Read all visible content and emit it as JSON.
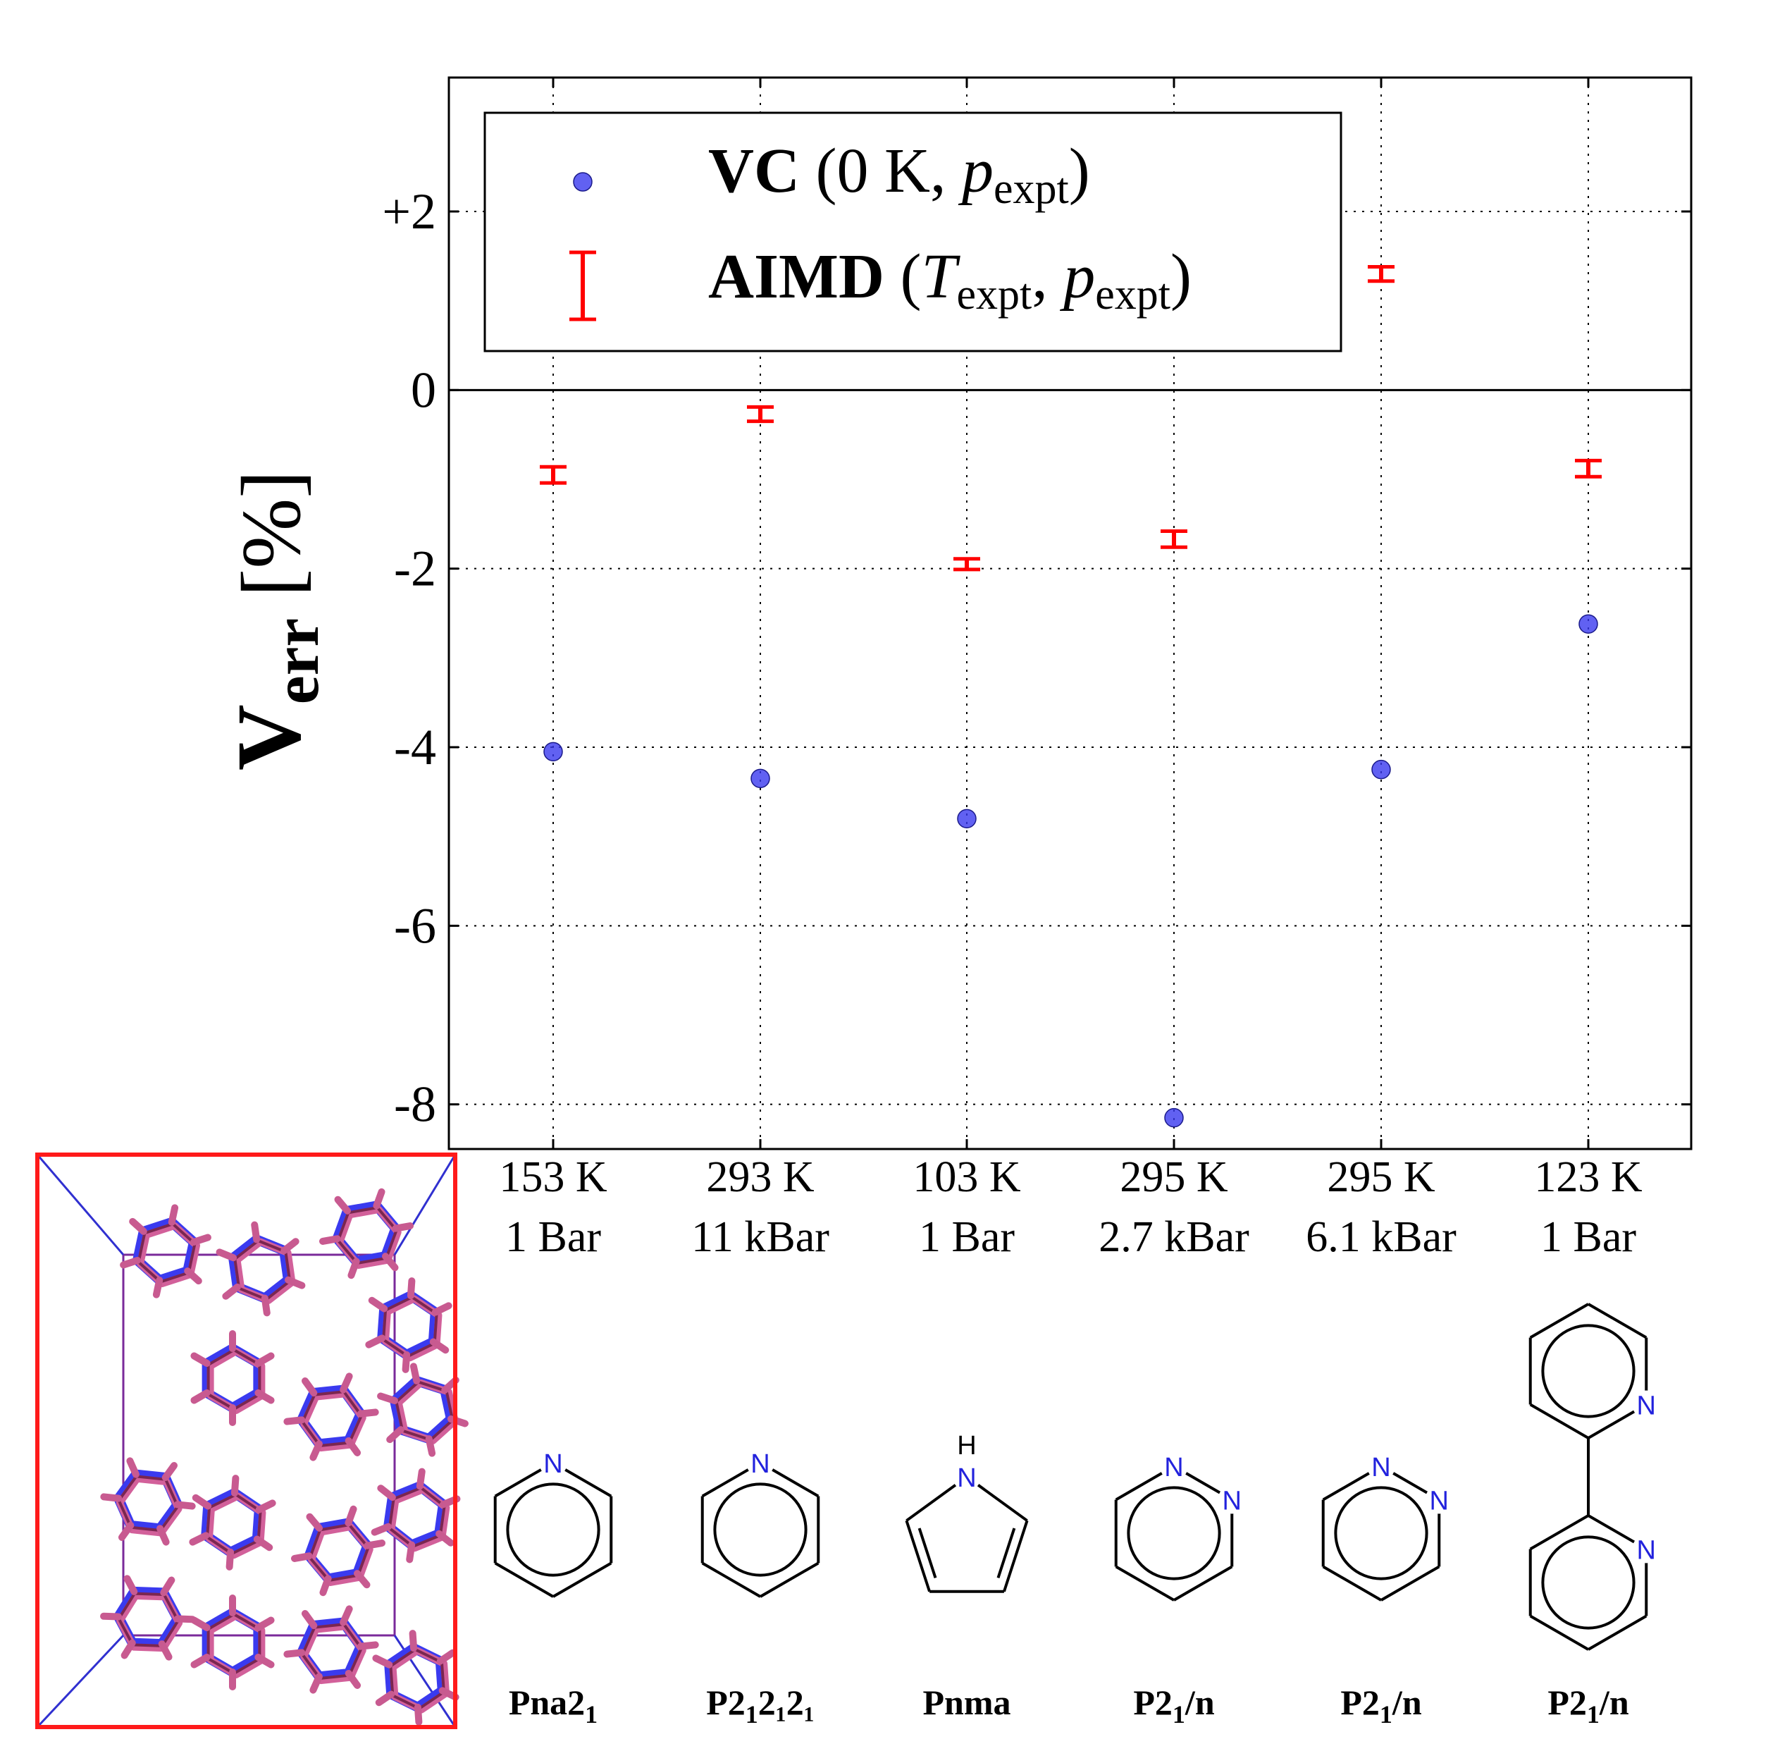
{
  "chart_data": {
    "type": "scatter",
    "title": "",
    "xlabel": "",
    "ylabel": {
      "main": "V",
      "sub": "err",
      "unit": "[%]"
    },
    "ylim": [
      -8.5,
      3.5
    ],
    "yticks": [
      {
        "value": 2,
        "label": "+2"
      },
      {
        "value": 0,
        "label": "0"
      },
      {
        "value": -2,
        "label": "-2"
      },
      {
        "value": -4,
        "label": "-4"
      },
      {
        "value": -6,
        "label": "-6"
      },
      {
        "value": -8,
        "label": "-8"
      }
    ],
    "grid": true,
    "categories": [
      {
        "temp": "153 K",
        "pressure": "1 Bar",
        "space_group": "Pna2",
        "sg_sub": "1",
        "sg_rest": "",
        "molecule": "pyridine"
      },
      {
        "temp": "293 K",
        "pressure": "11 kBar",
        "space_group": "P2",
        "sg_sub": "1",
        "sg_rest": "2₁2₁",
        "molecule": "pyridine"
      },
      {
        "temp": "103 K",
        "pressure": "1 Bar",
        "space_group": "Pnma",
        "sg_sub": "",
        "sg_rest": "",
        "molecule": "pyrrole"
      },
      {
        "temp": "295 K",
        "pressure": "2.7 kBar",
        "space_group": "P2",
        "sg_sub": "1",
        "sg_rest": "/n",
        "molecule": "pyridazine"
      },
      {
        "temp": "295 K",
        "pressure": "6.1 kBar",
        "space_group": "P2",
        "sg_sub": "1",
        "sg_rest": "/n",
        "molecule": "pyridazine"
      },
      {
        "temp": "123 K",
        "pressure": "1 Bar",
        "space_group": "P2",
        "sg_sub": "1",
        "sg_rest": "/n",
        "molecule": "bipyridine"
      }
    ],
    "series": [
      {
        "name": "VC",
        "kind": "point",
        "color": "#3a3aef",
        "values": [
          -4.05,
          -4.35,
          -4.8,
          -8.15,
          null,
          -2.62
        ]
      },
      {
        "name": "AIMD",
        "kind": "errorbar",
        "color": "#ff0000",
        "values": [
          -0.95,
          -0.27,
          -1.95,
          -1.67,
          1.3,
          -0.88
        ],
        "errors": [
          0.09,
          0.08,
          0.06,
          0.09,
          0.08,
          0.09
        ]
      }
    ],
    "extra_vc_point": {
      "category_index": 4,
      "value": -4.25
    },
    "legend": {
      "position": "top-left",
      "entries": [
        {
          "bold": "VC",
          "rest": " (0 K, ",
          "italic": "p",
          "sub": "expt",
          "close": ")"
        },
        {
          "bold": "AIMD",
          "rest": " (",
          "italic": "T",
          "sub": "expt",
          "mid": ", ",
          "italic2": "p",
          "sub2": "expt",
          "close": ")"
        }
      ]
    }
  },
  "inset": {
    "description_label": "crystal-structure-overlay"
  },
  "atom_labels": {
    "N": "N",
    "H": "H"
  },
  "colors": {
    "vc": "#3a3aef",
    "aimd": "#ff0000",
    "frame": "#ff1a1a",
    "axis": "#000000"
  }
}
